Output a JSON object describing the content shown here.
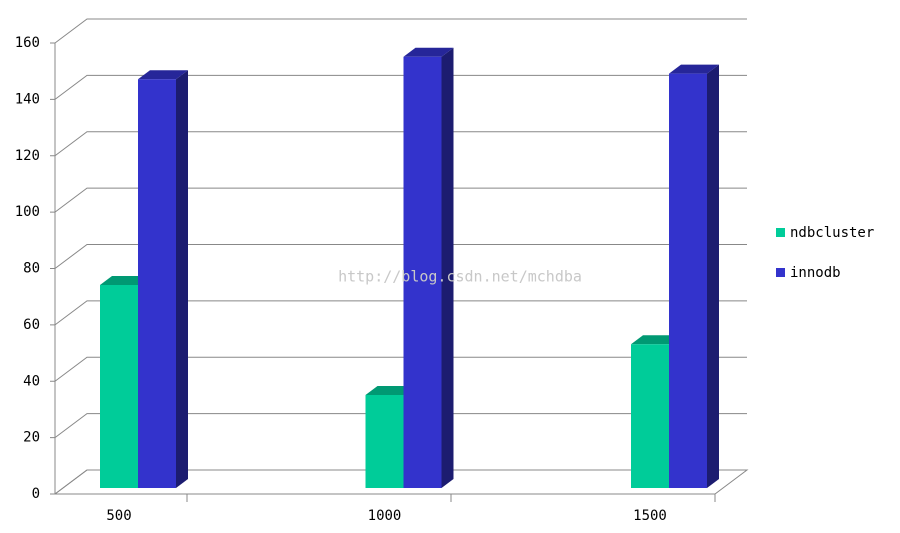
{
  "chart_data": {
    "type": "bar3d",
    "categories": [
      "500",
      "1000",
      "1500"
    ],
    "series": [
      {
        "name": "ndbcluster",
        "color": "#00cc99",
        "values": [
          72,
          33,
          51
        ]
      },
      {
        "name": "innodb",
        "color": "#3333cc",
        "values": [
          145,
          153,
          147
        ]
      }
    ],
    "ylim": [
      0,
      160
    ],
    "yticks": [
      0,
      20,
      40,
      60,
      80,
      100,
      120,
      140,
      160
    ],
    "grid": true,
    "legend": "right",
    "watermark": "http://blog.csdn.net/mchdba"
  }
}
